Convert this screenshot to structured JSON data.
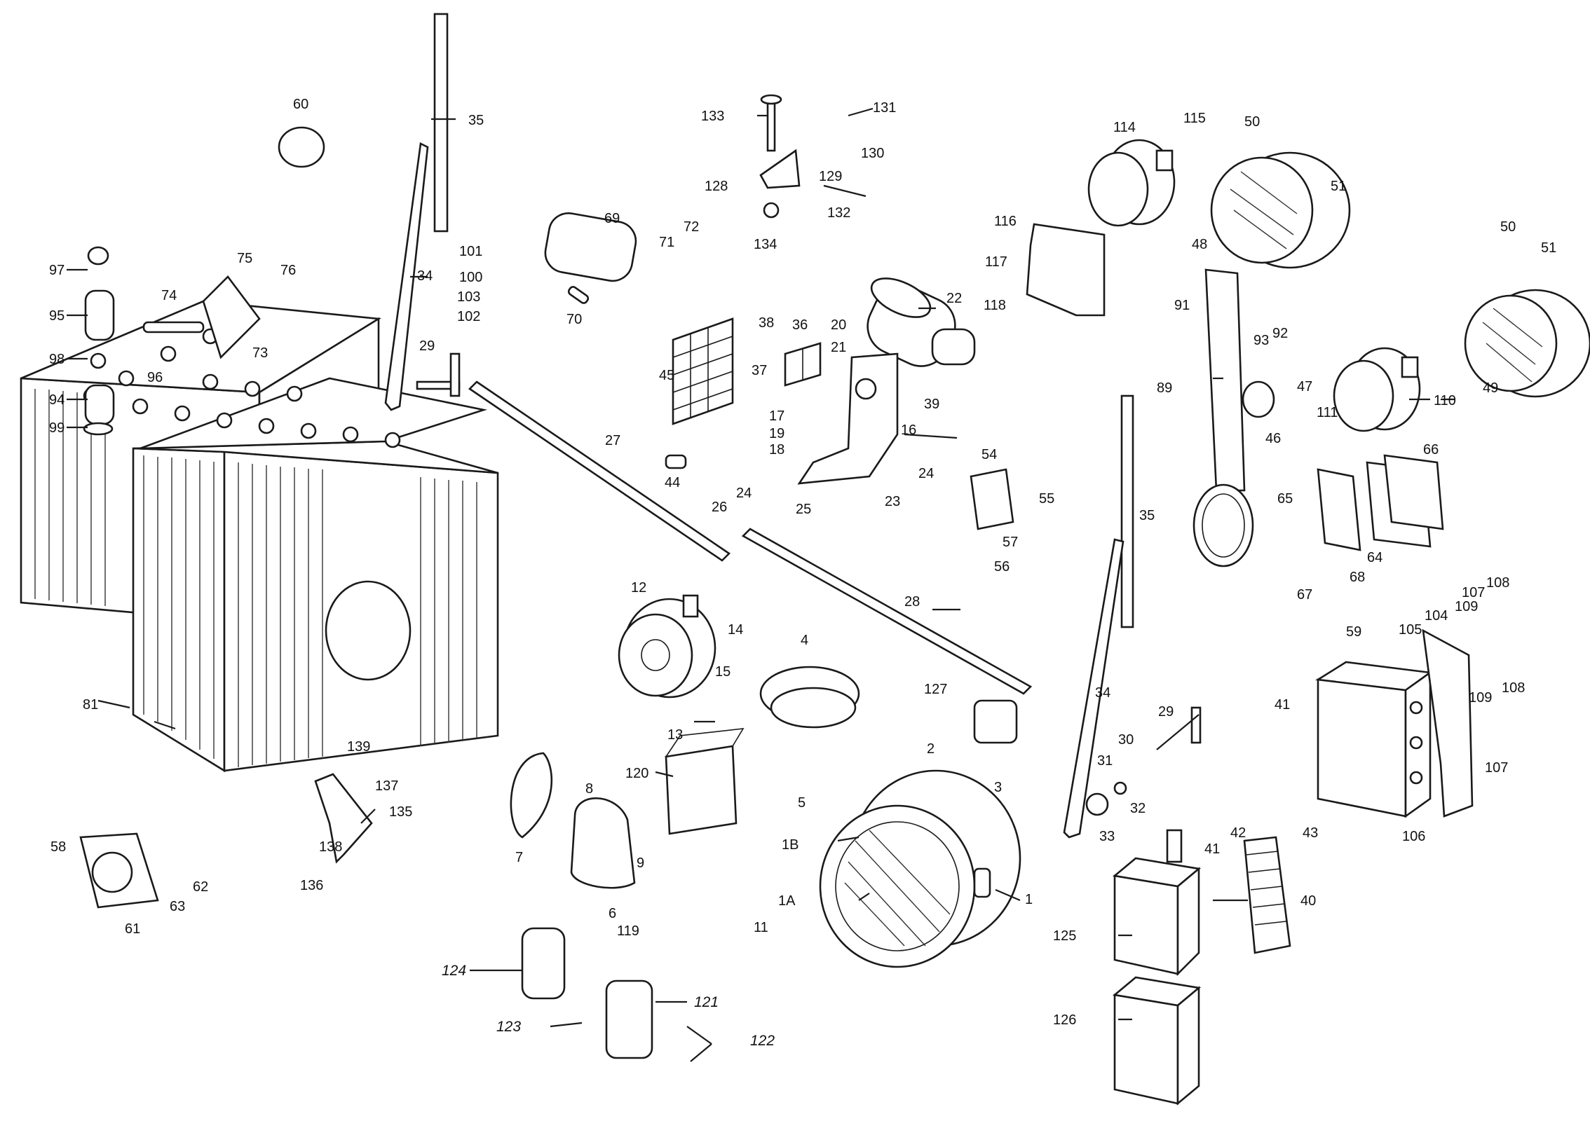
{
  "diagram": {
    "type": "exploded parts diagram",
    "line_color": "#1a1a1a",
    "background": "#ffffff",
    "parts": [
      {
        "id": "batteries",
        "label": "81"
      },
      {
        "id": "headlamp-large",
        "labels": [
          "1",
          "1A",
          "1B"
        ]
      },
      {
        "id": "headlamp-small-48",
        "label": "48"
      },
      {
        "id": "headlamp-small-49",
        "label": "49"
      },
      {
        "id": "starter-motor",
        "label": "22"
      },
      {
        "id": "horn",
        "label": "12"
      },
      {
        "id": "junction-box",
        "label": "59"
      },
      {
        "id": "switch-box-125",
        "label": "125"
      },
      {
        "id": "switch-box-126",
        "label": "126"
      },
      {
        "id": "fuse-block-45",
        "label": "45"
      },
      {
        "id": "terminal-strip-40",
        "label": "40"
      }
    ],
    "callouts": [
      {
        "key": "c60",
        "text": "60"
      },
      {
        "key": "c35a",
        "text": "35"
      },
      {
        "key": "c34a",
        "text": "34"
      },
      {
        "key": "c97",
        "text": "97"
      },
      {
        "key": "c95",
        "text": "95"
      },
      {
        "key": "c98",
        "text": "98"
      },
      {
        "key": "c94",
        "text": "94"
      },
      {
        "key": "c99",
        "text": "99"
      },
      {
        "key": "c96",
        "text": "96"
      },
      {
        "key": "c74",
        "text": "74"
      },
      {
        "key": "c75",
        "text": "75"
      },
      {
        "key": "c76",
        "text": "76"
      },
      {
        "key": "c73",
        "text": "73"
      },
      {
        "key": "c29a",
        "text": "29"
      },
      {
        "key": "c101",
        "text": "101"
      },
      {
        "key": "c100",
        "text": "100"
      },
      {
        "key": "c103",
        "text": "103"
      },
      {
        "key": "c102",
        "text": "102"
      },
      {
        "key": "c69",
        "text": "69"
      },
      {
        "key": "c71",
        "text": "71"
      },
      {
        "key": "c72",
        "text": "72"
      },
      {
        "key": "c70",
        "text": "70"
      },
      {
        "key": "c133",
        "text": "133"
      },
      {
        "key": "c131",
        "text": "131"
      },
      {
        "key": "c130",
        "text": "130"
      },
      {
        "key": "c129",
        "text": "129"
      },
      {
        "key": "c128",
        "text": "128"
      },
      {
        "key": "c132",
        "text": "132"
      },
      {
        "key": "c134",
        "text": "134"
      },
      {
        "key": "c114",
        "text": "114"
      },
      {
        "key": "c115",
        "text": "115"
      },
      {
        "key": "c50a",
        "text": "50"
      },
      {
        "key": "c51a",
        "text": "51"
      },
      {
        "key": "c48",
        "text": "48"
      },
      {
        "key": "c50b",
        "text": "50"
      },
      {
        "key": "c51b",
        "text": "51"
      },
      {
        "key": "c49",
        "text": "49"
      },
      {
        "key": "c116",
        "text": "116"
      },
      {
        "key": "c117",
        "text": "117"
      },
      {
        "key": "c118",
        "text": "118"
      },
      {
        "key": "c22",
        "text": "22"
      },
      {
        "key": "c20",
        "text": "20"
      },
      {
        "key": "c21",
        "text": "21"
      },
      {
        "key": "c38",
        "text": "38"
      },
      {
        "key": "c36",
        "text": "36"
      },
      {
        "key": "c37",
        "text": "37"
      },
      {
        "key": "c45",
        "text": "45"
      },
      {
        "key": "c39",
        "text": "39"
      },
      {
        "key": "c16",
        "text": "16"
      },
      {
        "key": "c17",
        "text": "17"
      },
      {
        "key": "c19",
        "text": "19"
      },
      {
        "key": "c18",
        "text": "18"
      },
      {
        "key": "c44",
        "text": "44"
      },
      {
        "key": "c23",
        "text": "23"
      },
      {
        "key": "c24a",
        "text": "24"
      },
      {
        "key": "c27",
        "text": "27"
      },
      {
        "key": "c26",
        "text": "26"
      },
      {
        "key": "c24b",
        "text": "24"
      },
      {
        "key": "c25",
        "text": "25"
      },
      {
        "key": "c54",
        "text": "54"
      },
      {
        "key": "c55",
        "text": "55"
      },
      {
        "key": "c57",
        "text": "57"
      },
      {
        "key": "c56",
        "text": "56"
      },
      {
        "key": "c91",
        "text": "91"
      },
      {
        "key": "c93",
        "text": "93"
      },
      {
        "key": "c92",
        "text": "92"
      },
      {
        "key": "c89",
        "text": "89"
      },
      {
        "key": "c47",
        "text": "47"
      },
      {
        "key": "c46",
        "text": "46"
      },
      {
        "key": "c110",
        "text": "110"
      },
      {
        "key": "c111",
        "text": "111"
      },
      {
        "key": "c66",
        "text": "66"
      },
      {
        "key": "c65",
        "text": "65"
      },
      {
        "key": "c64",
        "text": "64"
      },
      {
        "key": "c67",
        "text": "67"
      },
      {
        "key": "c68",
        "text": "68"
      },
      {
        "key": "c35b",
        "text": "35"
      },
      {
        "key": "c28",
        "text": "28"
      },
      {
        "key": "c12",
        "text": "12"
      },
      {
        "key": "c14",
        "text": "14"
      },
      {
        "key": "c15",
        "text": "15"
      },
      {
        "key": "c13",
        "text": "13"
      },
      {
        "key": "c4",
        "text": "4"
      },
      {
        "key": "c127",
        "text": "127"
      },
      {
        "key": "c81",
        "text": "81"
      },
      {
        "key": "c34b",
        "text": "34"
      },
      {
        "key": "c29b",
        "text": "29"
      },
      {
        "key": "c30",
        "text": "30"
      },
      {
        "key": "c31",
        "text": "31"
      },
      {
        "key": "c32",
        "text": "32"
      },
      {
        "key": "c33",
        "text": "33"
      },
      {
        "key": "c59",
        "text": "59"
      },
      {
        "key": "c105",
        "text": "105"
      },
      {
        "key": "c104",
        "text": "104"
      },
      {
        "key": "c109a",
        "text": "109"
      },
      {
        "key": "c107a",
        "text": "107"
      },
      {
        "key": "c108a",
        "text": "108"
      },
      {
        "key": "c41a",
        "text": "41"
      },
      {
        "key": "c109b",
        "text": "109"
      },
      {
        "key": "c108b",
        "text": "108"
      },
      {
        "key": "c107b",
        "text": "107"
      },
      {
        "key": "c106",
        "text": "106"
      },
      {
        "key": "c139",
        "text": "139"
      },
      {
        "key": "c137",
        "text": "137"
      },
      {
        "key": "c135",
        "text": "135"
      },
      {
        "key": "c138",
        "text": "138"
      },
      {
        "key": "c136",
        "text": "136"
      },
      {
        "key": "c120",
        "text": "120"
      },
      {
        "key": "c2",
        "text": "2"
      },
      {
        "key": "c3",
        "text": "3"
      },
      {
        "key": "c5",
        "text": "5"
      },
      {
        "key": "c8",
        "text": "8"
      },
      {
        "key": "c7",
        "text": "7"
      },
      {
        "key": "c9",
        "text": "9"
      },
      {
        "key": "c6",
        "text": "6"
      },
      {
        "key": "c119",
        "text": "119"
      },
      {
        "key": "c1B",
        "text": "1B"
      },
      {
        "key": "c1A",
        "text": "1A"
      },
      {
        "key": "c1",
        "text": "1"
      },
      {
        "key": "c58",
        "text": "58"
      },
      {
        "key": "c62",
        "text": "62"
      },
      {
        "key": "c63",
        "text": "63"
      },
      {
        "key": "c61",
        "text": "61"
      },
      {
        "key": "c11",
        "text": "11"
      },
      {
        "key": "c43",
        "text": "43"
      },
      {
        "key": "c42",
        "text": "42"
      },
      {
        "key": "c41b",
        "text": "41"
      },
      {
        "key": "c40",
        "text": "40"
      },
      {
        "key": "c125",
        "text": "125"
      },
      {
        "key": "c126",
        "text": "126"
      },
      {
        "key": "c124",
        "text": "124"
      },
      {
        "key": "c121",
        "text": "121"
      },
      {
        "key": "c123",
        "text": "123"
      },
      {
        "key": "c122",
        "text": "122"
      }
    ]
  }
}
